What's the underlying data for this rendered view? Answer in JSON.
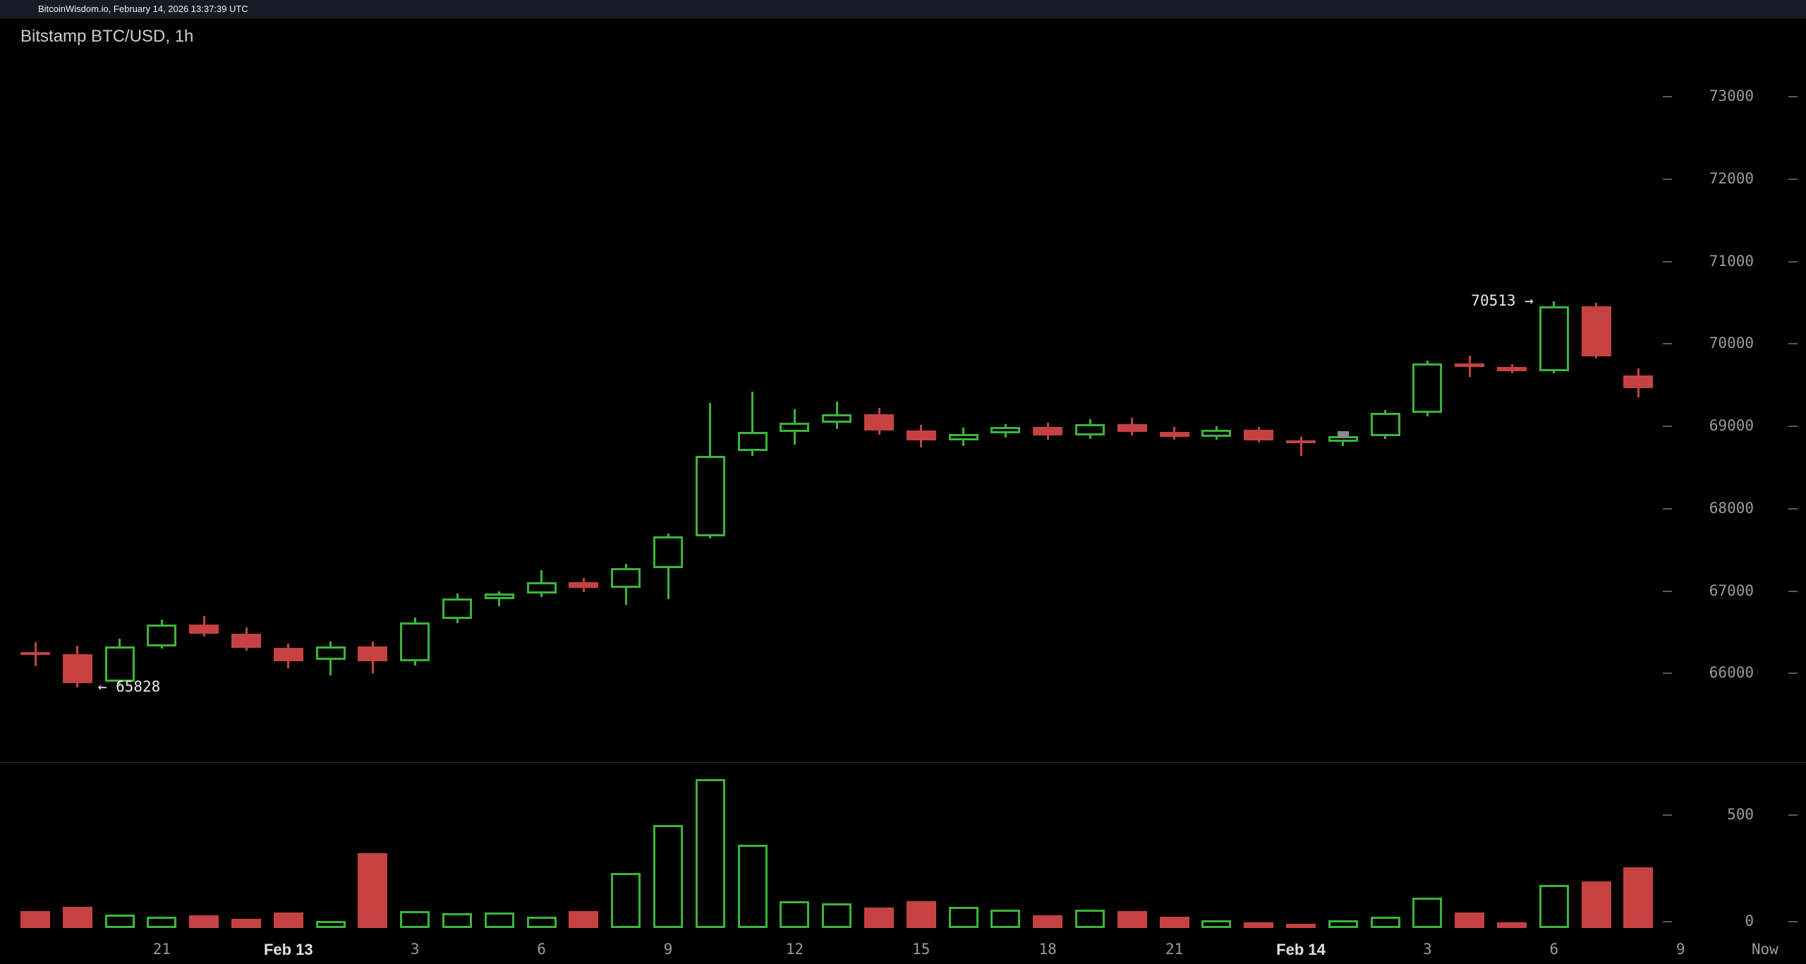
{
  "window": {
    "title": "BitcoinWisdom.io, February 14, 2026 13:37:39 UTC"
  },
  "chart": {
    "title": "Bitstamp BTC/USD, 1h"
  },
  "chart_data": {
    "type": "candlestick",
    "title": "Bitstamp BTC/USD, 1h",
    "exchange": "Bitstamp",
    "pair": "BTC/USD",
    "interval": "1h",
    "price_axis": {
      "ticks": [
        73000,
        72000,
        71000,
        70000,
        69000,
        68000,
        67000,
        66000
      ]
    },
    "volume_axis": {
      "ticks": [
        500,
        0
      ]
    },
    "x_axis": {
      "labels": [
        {
          "label": "21",
          "candle_index": 3,
          "emphasis": false
        },
        {
          "label": "Feb 13",
          "candle_index": 6,
          "emphasis": true
        },
        {
          "label": "3",
          "candle_index": 9,
          "emphasis": false
        },
        {
          "label": "6",
          "candle_index": 12,
          "emphasis": false
        },
        {
          "label": "9",
          "candle_index": 15,
          "emphasis": false
        },
        {
          "label": "12",
          "candle_index": 18,
          "emphasis": false
        },
        {
          "label": "15",
          "candle_index": 21,
          "emphasis": false
        },
        {
          "label": "18",
          "candle_index": 24,
          "emphasis": false
        },
        {
          "label": "21",
          "candle_index": 27,
          "emphasis": false
        },
        {
          "label": "Feb 14",
          "candle_index": 30,
          "emphasis": true
        },
        {
          "label": "3",
          "candle_index": 33,
          "emphasis": false
        },
        {
          "label": "6",
          "candle_index": 36,
          "emphasis": false
        },
        {
          "label": "9",
          "candle_index": 39,
          "emphasis": false
        },
        {
          "label": "Now",
          "candle_index": 41,
          "emphasis": false
        }
      ]
    },
    "annotations": [
      {
        "id": "session-high",
        "text": "70513 →",
        "price": 70513,
        "candle_index": 36,
        "side": "left"
      },
      {
        "id": "session-low",
        "text": "← 65828",
        "price": 65828,
        "candle_index": 1,
        "side": "right"
      }
    ],
    "marker": {
      "candle_index": 31,
      "price": 68900,
      "color": "#8b8b8b"
    },
    "colors": {
      "up": "#3cb43c",
      "down": "#c64242",
      "axis_text": "#9b9b9b",
      "tick": "#5a5a5a",
      "annotation_text": "#e8e8e8",
      "background": "#000000"
    },
    "candles_format": [
      "open",
      "high",
      "low",
      "close",
      "volume"
    ],
    "candles": [
      [
        66260,
        66380,
        66090,
        66230,
        75
      ],
      [
        66230,
        66340,
        65828,
        65880,
        95
      ],
      [
        65900,
        66420,
        65860,
        66330,
        60
      ],
      [
        66330,
        66650,
        66300,
        66590,
        50
      ],
      [
        66590,
        66700,
        66450,
        66480,
        55
      ],
      [
        66480,
        66560,
        66280,
        66310,
        40
      ],
      [
        66310,
        66360,
        66060,
        66150,
        70
      ],
      [
        66160,
        66390,
        65980,
        66330,
        30
      ],
      [
        66330,
        66390,
        66000,
        66150,
        330
      ],
      [
        66150,
        66680,
        66100,
        66620,
        75
      ],
      [
        66660,
        66970,
        66610,
        66910,
        65
      ],
      [
        66900,
        67000,
        66820,
        66970,
        70
      ],
      [
        66970,
        67250,
        66930,
        67110,
        50
      ],
      [
        67110,
        67160,
        66990,
        67040,
        75
      ],
      [
        67040,
        67330,
        66830,
        67280,
        245
      ],
      [
        67280,
        67700,
        66900,
        67660,
        455
      ],
      [
        67660,
        69280,
        67640,
        68640,
        660
      ],
      [
        68700,
        69420,
        68640,
        68930,
        370
      ],
      [
        68930,
        69210,
        68780,
        69040,
        120
      ],
      [
        69040,
        69300,
        68970,
        69150,
        110
      ],
      [
        69150,
        69220,
        68900,
        68950,
        90
      ],
      [
        68950,
        69020,
        68740,
        68830,
        120
      ],
      [
        68830,
        68980,
        68760,
        68910,
        95
      ],
      [
        68910,
        69030,
        68860,
        68990,
        80
      ],
      [
        68990,
        69040,
        68840,
        68890,
        55
      ],
      [
        68890,
        69090,
        68850,
        69030,
        80
      ],
      [
        69030,
        69100,
        68890,
        68930,
        75
      ],
      [
        68930,
        68990,
        68840,
        68870,
        50
      ],
      [
        68870,
        69000,
        68840,
        68960,
        35
      ],
      [
        68960,
        68990,
        68800,
        68830,
        25
      ],
      [
        68830,
        68870,
        68640,
        68810,
        20
      ],
      [
        68810,
        68910,
        68760,
        68880,
        35
      ],
      [
        68880,
        69200,
        68850,
        69160,
        50
      ],
      [
        69160,
        69800,
        69120,
        69760,
        135
      ],
      [
        69760,
        69860,
        69600,
        69720,
        70
      ],
      [
        69720,
        69750,
        69640,
        69670,
        25
      ],
      [
        69670,
        70513,
        69640,
        70460,
        190
      ],
      [
        70460,
        70500,
        69820,
        69850,
        205
      ],
      [
        69620,
        69700,
        69350,
        69460,
        270
      ]
    ]
  }
}
